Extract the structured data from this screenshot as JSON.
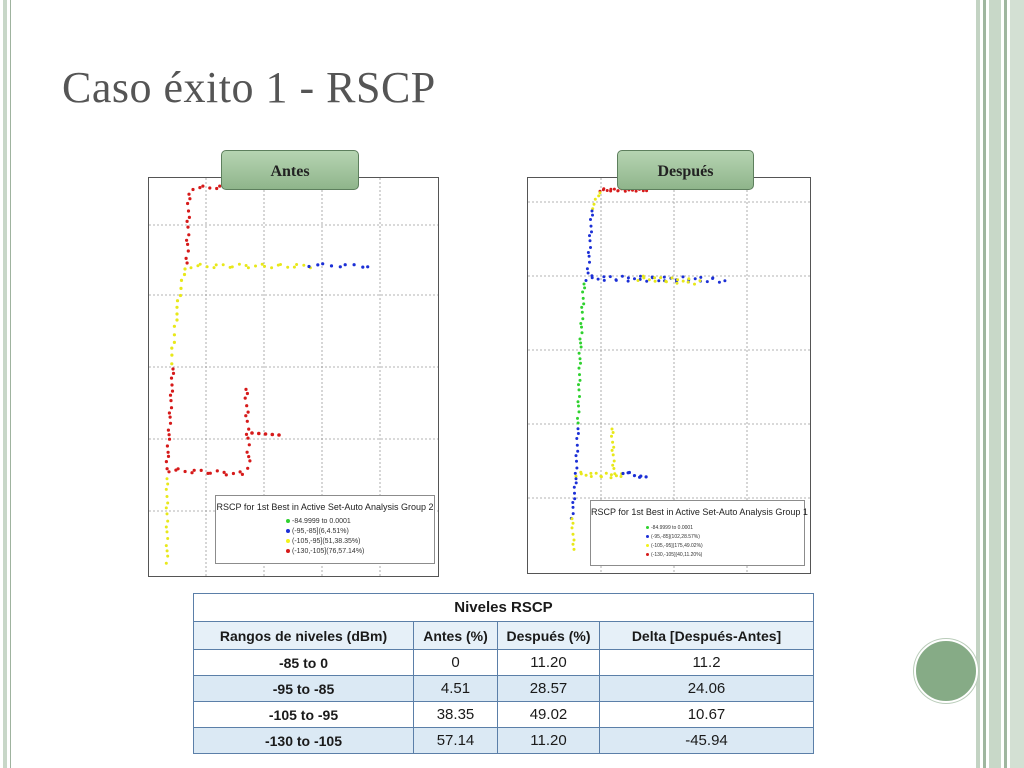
{
  "slide": {
    "title": "Caso éxito 1 - RSCP",
    "colors": {
      "frame_green": "#86ab86",
      "title_gray": "#555555",
      "table_border": "#5b7fa8",
      "table_band": "#dbe9f4"
    }
  },
  "panels": {
    "antes": {
      "tag": "Antes",
      "legend_title": "RSCP for 1st Best in Active Set-Auto Analysis Group 2",
      "legend_items": [
        {
          "label": "-84.9999 to 0.0001",
          "color": "#2fd12f"
        },
        {
          "label": "(-95,-85](6,4.51%)",
          "color": "#1b2fd6"
        },
        {
          "label": "(-105,-95](51,38.35%)",
          "color": "#f2f21a"
        },
        {
          "label": "(-130,-105](76,57.14%)",
          "color": "#d61a1a"
        }
      ]
    },
    "despues": {
      "tag": "Después",
      "legend_title": "RSCP for 1st Best in Active Set-Auto Analysis Group 1",
      "legend_items": [
        {
          "label": "-84.9999 to 0.0001",
          "color": "#2fd12f"
        },
        {
          "label": "(-95,-85](102,28.57%)",
          "color": "#1b2fd6"
        },
        {
          "label": "(-105,-95](175,49.02%)",
          "color": "#f2f21a"
        },
        {
          "label": "(-130,-105](40,11.20%)",
          "color": "#d61a1a"
        }
      ]
    }
  },
  "table": {
    "caption": "Niveles RSCP",
    "headers": [
      "Rangos de niveles (dBm)",
      "Antes (%)",
      "Después (%)",
      "Delta [Después-Antes]"
    ],
    "rows": [
      [
        "-85 to 0",
        "0",
        "11.20",
        "11.2"
      ],
      [
        "-95 to -85",
        "4.51",
        "28.57",
        "24.06"
      ],
      [
        "-105 to -95",
        "38.35",
        "49.02",
        "10.67"
      ],
      [
        "-130 to -105",
        "57.14",
        "11.20",
        "-45.94"
      ]
    ]
  }
}
